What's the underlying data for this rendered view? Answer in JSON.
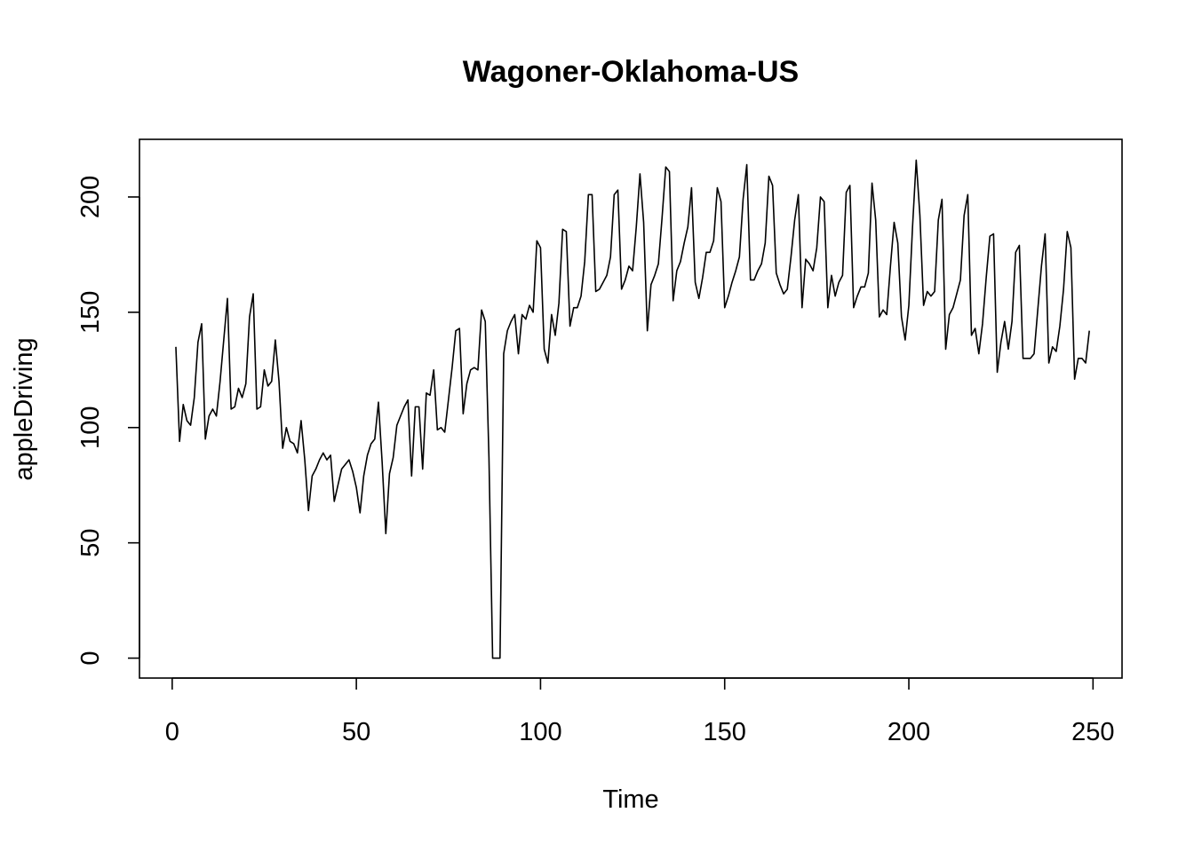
{
  "chart_data": {
    "type": "line",
    "title": "Wagoner-Oklahoma-US",
    "xlabel": "Time",
    "ylabel": "appleDriving",
    "xlim": [
      -8.88,
      257.88
    ],
    "ylim": [
      -8.64,
      225.0
    ],
    "x_ticks": [
      0,
      50,
      100,
      150,
      200,
      250
    ],
    "y_ticks": [
      0,
      50,
      100,
      150,
      200
    ],
    "grid": false,
    "legend": "none",
    "x_start": 1,
    "series": [
      {
        "values": [
          135,
          94,
          110,
          103,
          101,
          113,
          137,
          145,
          95,
          105,
          108,
          105,
          120,
          138,
          156,
          108,
          109,
          117,
          113,
          119,
          148,
          158,
          108,
          109,
          125,
          118,
          120,
          138,
          120,
          91,
          100,
          94,
          93,
          89,
          103,
          86,
          64,
          79,
          82,
          86,
          89,
          86,
          88,
          68,
          75,
          82,
          84,
          86,
          81,
          74,
          63,
          79,
          88,
          93,
          95,
          111,
          85,
          54,
          80,
          87,
          101,
          105,
          109,
          112,
          79,
          109,
          109,
          82,
          115,
          114,
          125,
          99,
          100,
          98,
          112,
          126,
          142,
          143,
          106,
          119,
          125,
          126,
          125,
          151,
          146,
          87,
          0,
          0,
          0,
          132,
          142,
          146,
          149,
          132,
          149,
          147,
          153,
          150,
          181,
          178,
          134,
          128,
          149,
          140,
          154,
          186,
          185,
          144,
          152,
          152,
          157,
          172,
          201,
          201,
          159,
          160,
          163,
          166,
          174,
          201,
          203,
          160,
          164,
          170,
          168,
          187,
          210,
          189,
          142,
          162,
          166,
          171,
          191,
          213,
          211,
          155,
          168,
          172,
          180,
          187,
          204,
          163,
          156,
          165,
          176,
          176,
          181,
          204,
          198,
          152,
          157,
          163,
          168,
          174,
          199,
          214,
          164,
          164,
          168,
          171,
          180,
          209,
          205,
          167,
          162,
          158,
          160,
          174,
          190,
          201,
          152,
          173,
          171,
          168,
          178,
          200,
          198,
          152,
          166,
          157,
          163,
          166,
          202,
          205,
          152,
          157,
          161,
          161,
          167,
          206,
          190,
          148,
          151,
          149,
          170,
          189,
          180,
          148,
          138,
          153,
          187,
          216,
          192,
          153,
          159,
          157,
          159,
          190,
          199,
          134,
          149,
          152,
          158,
          164,
          192,
          201,
          140,
          143,
          132,
          145,
          165,
          183,
          184,
          124,
          137,
          146,
          134,
          146,
          176,
          179,
          130,
          130,
          130,
          132,
          151,
          170,
          184,
          128,
          135,
          133,
          144,
          160,
          185,
          178,
          121,
          130,
          130,
          128,
          142
        ]
      }
    ]
  }
}
